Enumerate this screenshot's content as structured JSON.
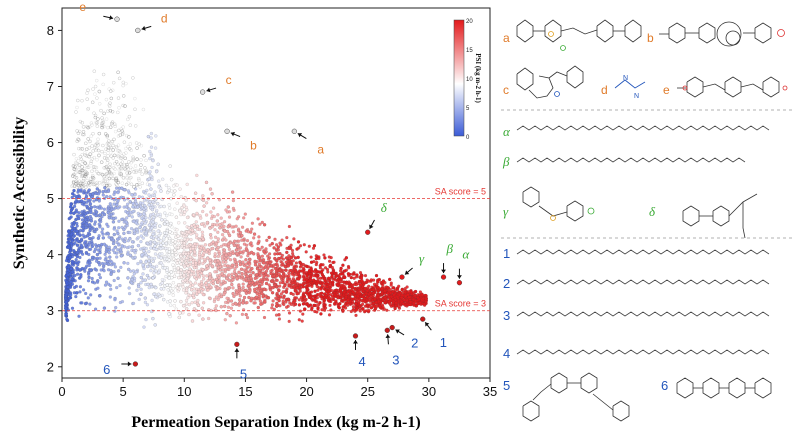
{
  "chart_data": {
    "type": "scatter",
    "xlabel": "Permeation Separation Index (kg m-2 h-1)",
    "ylabel": "Synthetic Accessibility",
    "xlim": [
      0,
      35
    ],
    "ylim": [
      1.8,
      8.4
    ],
    "x_ticks": [
      0,
      5,
      10,
      15,
      20,
      25,
      30,
      35
    ],
    "y_ticks": [
      2,
      3,
      4,
      5,
      6,
      7,
      8
    ],
    "grid": false,
    "colorbar": {
      "title": "PSI (kg m-2 h-1)",
      "ticks": [
        0,
        5,
        10,
        15,
        20
      ],
      "range": [
        0,
        20
      ],
      "colors": [
        "#3b5bd6",
        "#ffffff",
        "#e31a1c"
      ],
      "placement": "top-right"
    },
    "reference_lines": [
      {
        "y": 5,
        "label": "SA score = 5",
        "color": "#e53935"
      },
      {
        "y": 3,
        "label": "SA score = 3",
        "color": "#e53935"
      }
    ],
    "annotations": [
      {
        "label": "e",
        "x": 4.5,
        "y": 8.2,
        "group": "high-SA",
        "color": "#e07b2a"
      },
      {
        "label": "d",
        "x": 6.2,
        "y": 8.0,
        "group": "high-SA",
        "color": "#e07b2a"
      },
      {
        "label": "c",
        "x": 11.5,
        "y": 6.9,
        "group": "high-SA",
        "color": "#e07b2a"
      },
      {
        "label": "b",
        "x": 13.5,
        "y": 6.2,
        "group": "high-SA",
        "color": "#e07b2a"
      },
      {
        "label": "a",
        "x": 19.0,
        "y": 6.2,
        "group": "high-SA",
        "color": "#e07b2a"
      },
      {
        "label": "α",
        "x": 32.5,
        "y": 3.5,
        "group": "high-PSI",
        "color": "#3aaa35"
      },
      {
        "label": "β",
        "x": 31.2,
        "y": 3.6,
        "group": "high-PSI",
        "color": "#3aaa35"
      },
      {
        "label": "γ",
        "x": 27.8,
        "y": 3.6,
        "group": "high-PSI",
        "color": "#3aaa35"
      },
      {
        "label": "δ",
        "x": 25.0,
        "y": 4.4,
        "group": "high-PSI",
        "color": "#3aaa35"
      },
      {
        "label": "1",
        "x": 29.5,
        "y": 2.85,
        "group": "low-SA",
        "color": "#2255bb"
      },
      {
        "label": "2",
        "x": 27.0,
        "y": 2.7,
        "group": "low-SA",
        "color": "#2255bb"
      },
      {
        "label": "3",
        "x": 26.6,
        "y": 2.65,
        "group": "low-SA",
        "color": "#2255bb"
      },
      {
        "label": "4",
        "x": 24.0,
        "y": 2.55,
        "group": "low-SA",
        "color": "#2255bb"
      },
      {
        "label": "5",
        "x": 14.3,
        "y": 2.4,
        "group": "low-SA",
        "color": "#2255bb"
      },
      {
        "label": "6",
        "x": 6.0,
        "y": 2.05,
        "group": "low-SA",
        "color": "#2255bb"
      }
    ],
    "distribution": {
      "description_points": "dense cloud of candidate polymers",
      "envelope_upper": [
        [
          0.3,
          3.6
        ],
        [
          1,
          7.4
        ],
        [
          3,
          8.0
        ],
        [
          5,
          8.1
        ],
        [
          6,
          7.2
        ],
        [
          8,
          6.4
        ],
        [
          10,
          5.9
        ],
        [
          13,
          5.4
        ],
        [
          16,
          4.9
        ],
        [
          19,
          4.6
        ],
        [
          22,
          4.2
        ],
        [
          25,
          3.8
        ],
        [
          28,
          3.5
        ],
        [
          30,
          3.3
        ]
      ],
      "envelope_lower": [
        [
          0.3,
          2.8
        ],
        [
          2,
          2.7
        ],
        [
          5,
          2.65
        ],
        [
          10,
          2.7
        ],
        [
          15,
          2.75
        ],
        [
          20,
          2.8
        ],
        [
          25,
          2.9
        ],
        [
          30,
          3.1
        ]
      ]
    }
  },
  "panel": {
    "letter_labels": [
      "a",
      "b",
      "c",
      "d",
      "e"
    ],
    "greek_labels": [
      "α",
      "β",
      "γ",
      "δ"
    ],
    "number_labels": [
      "1",
      "2",
      "3",
      "4",
      "5",
      "6"
    ]
  }
}
